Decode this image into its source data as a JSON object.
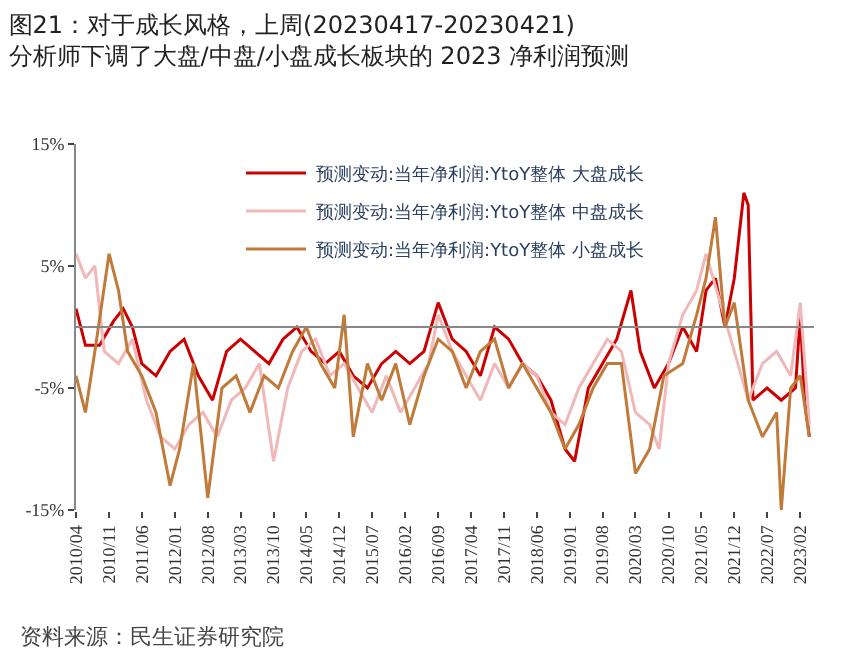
{
  "chart_data": {
    "type": "line",
    "title": "图21：对于成长风格，上周(20230417-20230421)分析师下调了大盘/中盘/小盘成长板块的 2023 净利润预测",
    "annotations": [
      "资料来源：民生证券研究院"
    ],
    "xlim": [
      "2010-04",
      "2023-05"
    ],
    "xticks": [
      {
        "value": "2010-04",
        "label": "2010/04"
      },
      {
        "value": "2010-11",
        "label": "2010/11"
      },
      {
        "value": "2011-06",
        "label": "2011/06"
      },
      {
        "value": "2012-01",
        "label": "2012/01"
      },
      {
        "value": "2012-08",
        "label": "2012/08"
      },
      {
        "value": "2013-03",
        "label": "2013/03"
      },
      {
        "value": "2013-10",
        "label": "2013/10"
      },
      {
        "value": "2014-05",
        "label": "2014/05"
      },
      {
        "value": "2014-12",
        "label": "2014/12"
      },
      {
        "value": "2015-07",
        "label": "2015/07"
      },
      {
        "value": "2016-02",
        "label": "2016/02"
      },
      {
        "value": "2016-09",
        "label": "2016/09"
      },
      {
        "value": "2017-04",
        "label": "2017/04"
      },
      {
        "value": "2017-11",
        "label": "2017/11"
      },
      {
        "value": "2018-06",
        "label": "2018/06"
      },
      {
        "value": "2019-01",
        "label": "2019/01"
      },
      {
        "value": "2019-08",
        "label": "2019/08"
      },
      {
        "value": "2020-03",
        "label": "2020/03"
      },
      {
        "value": "2020-10",
        "label": "2020/10"
      },
      {
        "value": "2021-05",
        "label": "2021/05"
      },
      {
        "value": "2021-12",
        "label": "2021/12"
      },
      {
        "value": "2022-07",
        "label": "2022/07"
      },
      {
        "value": "2023-02",
        "label": "2023/02"
      }
    ],
    "ylim": [
      -15,
      15
    ],
    "yticks": [
      {
        "value": -15,
        "label": "-15%"
      },
      {
        "value": -5,
        "label": "-5%"
      },
      {
        "value": 5,
        "label": "5%"
      },
      {
        "value": 15,
        "label": "15%"
      }
    ],
    "legend": "top",
    "marker": "none",
    "line_style": "solid",
    "ref_lines": [
      {
        "axis": "y",
        "value": 0,
        "color": "#888888"
      }
    ],
    "series": [
      {
        "name": "预测变动:当年净利润:YtoY整体 大盘成长",
        "color": "#cc0000",
        "x": [
          "2010-04",
          "2010-06",
          "2010-09",
          "2010-12",
          "2011-02",
          "2011-04",
          "2011-06",
          "2011-09",
          "2011-12",
          "2012-03",
          "2012-06",
          "2012-09",
          "2012-12",
          "2013-03",
          "2013-06",
          "2013-09",
          "2013-12",
          "2014-03",
          "2014-06",
          "2014-09",
          "2014-12",
          "2015-03",
          "2015-06",
          "2015-09",
          "2015-12",
          "2016-03",
          "2016-06",
          "2016-09",
          "2016-12",
          "2017-03",
          "2017-06",
          "2017-09",
          "2017-12",
          "2018-03",
          "2018-06",
          "2018-09",
          "2018-12",
          "2019-02",
          "2019-05",
          "2019-08",
          "2019-11",
          "2020-02",
          "2020-04",
          "2020-07",
          "2020-10",
          "2021-01",
          "2021-04",
          "2021-06",
          "2021-08",
          "2021-10",
          "2021-12",
          "2022-02",
          "2022-03",
          "2022-04",
          "2022-07",
          "2022-10",
          "2023-01",
          "2023-02",
          "2023-03",
          "2023-04"
        ],
        "values": [
          1.5,
          -1.5,
          -1.5,
          0.5,
          1.5,
          0,
          -3,
          -4,
          -2,
          -1,
          -4,
          -6,
          -2,
          -1,
          -2,
          -3,
          -1,
          0,
          -2,
          -3,
          -2,
          -4,
          -5,
          -3,
          -2,
          -3,
          -2,
          2,
          -1,
          -2,
          -4,
          0,
          -1,
          -3,
          -4,
          -6,
          -10,
          -11,
          -5,
          -3,
          -1,
          3,
          -2,
          -5,
          -3,
          0,
          -2,
          3,
          4,
          0,
          4,
          11,
          10,
          -6,
          -5,
          -6,
          -5,
          1,
          -6,
          -9
        ]
      },
      {
        "name": "预测变动:当年净利润:YtoY整体 中盘成长",
        "color": "#f0b8b8",
        "x": [
          "2010-04",
          "2010-06",
          "2010-08",
          "2010-10",
          "2011-01",
          "2011-04",
          "2011-07",
          "2011-10",
          "2012-01",
          "2012-04",
          "2012-07",
          "2012-10",
          "2013-01",
          "2013-04",
          "2013-07",
          "2013-10",
          "2014-01",
          "2014-04",
          "2014-07",
          "2014-10",
          "2015-01",
          "2015-04",
          "2015-07",
          "2015-10",
          "2016-01",
          "2016-04",
          "2016-07",
          "2016-09",
          "2016-12",
          "2017-03",
          "2017-06",
          "2017-09",
          "2017-12",
          "2018-03",
          "2018-06",
          "2018-09",
          "2018-12",
          "2019-03",
          "2019-06",
          "2019-09",
          "2019-12",
          "2020-03",
          "2020-06",
          "2020-08",
          "2020-10",
          "2021-01",
          "2021-04",
          "2021-06",
          "2021-09",
          "2021-12",
          "2022-03",
          "2022-06",
          "2022-09",
          "2022-12",
          "2023-02",
          "2023-04"
        ],
        "values": [
          6,
          4,
          5,
          -2,
          -3,
          -1,
          -6,
          -9,
          -10,
          -8,
          -7,
          -9,
          -6,
          -5,
          -3,
          -11,
          -5,
          -2,
          -1,
          -4,
          -3,
          -5,
          -7,
          -4,
          -7,
          -5,
          -3,
          1,
          -2,
          -4,
          -6,
          -3,
          -5,
          -3,
          -4,
          -7,
          -8,
          -5,
          -3,
          -1,
          -2,
          -7,
          -8,
          -10,
          -3,
          1,
          3,
          6,
          2,
          -2,
          -6,
          -3,
          -2,
          -4,
          2,
          -8
        ]
      },
      {
        "name": "预测变动:当年净利润:YtoY整体 小盘成长",
        "color": "#c07a3a",
        "x": [
          "2010-04",
          "2010-06",
          "2010-08",
          "2010-11",
          "2011-01",
          "2011-03",
          "2011-06",
          "2011-09",
          "2011-12",
          "2012-02",
          "2012-05",
          "2012-08",
          "2012-11",
          "2013-02",
          "2013-05",
          "2013-08",
          "2013-11",
          "2014-02",
          "2014-05",
          "2014-08",
          "2014-11",
          "2015-01",
          "2015-03",
          "2015-06",
          "2015-09",
          "2015-12",
          "2016-03",
          "2016-06",
          "2016-09",
          "2016-12",
          "2017-03",
          "2017-06",
          "2017-09",
          "2017-12",
          "2018-03",
          "2018-06",
          "2018-09",
          "2018-12",
          "2019-03",
          "2019-06",
          "2019-09",
          "2019-12",
          "2020-03",
          "2020-06",
          "2020-09",
          "2021-01",
          "2021-04",
          "2021-06",
          "2021-08",
          "2021-10",
          "2021-12",
          "2022-03",
          "2022-06",
          "2022-09",
          "2022-10",
          "2022-12",
          "2023-02",
          "2023-04"
        ],
        "values": [
          -4,
          -7,
          -2,
          6,
          3,
          -2,
          -4,
          -7,
          -13,
          -10,
          -3,
          -14,
          -5,
          -4,
          -7,
          -4,
          -5,
          -2,
          0,
          -3,
          -5,
          1,
          -9,
          -3,
          -6,
          -3,
          -8,
          -4,
          -1,
          -2,
          -5,
          -2,
          -1,
          -5,
          -3,
          -5,
          -7,
          -10,
          -8,
          -5,
          -3,
          -3,
          -12,
          -10,
          -4,
          -3,
          1,
          4,
          9,
          0,
          2,
          -6,
          -9,
          -7,
          -15,
          -5,
          -4,
          -9
        ]
      }
    ]
  }
}
